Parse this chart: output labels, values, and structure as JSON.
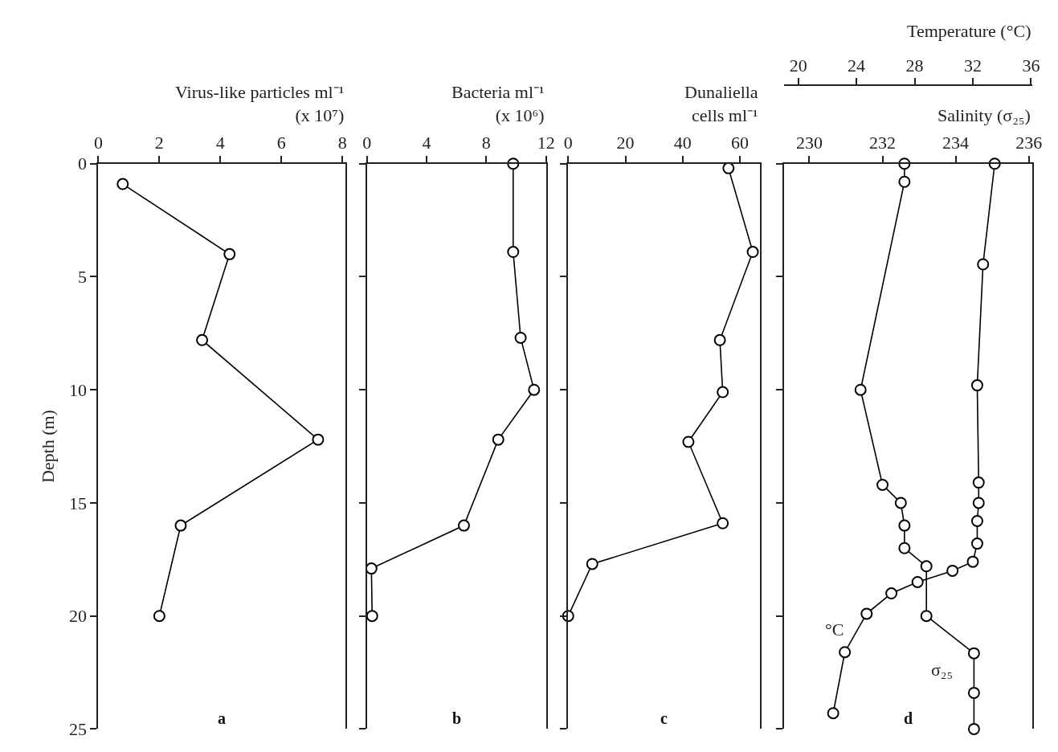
{
  "chart_data": [
    {
      "type": "line",
      "orientation": "horizontal",
      "title": "a",
      "xlabel": "Virus-like particles ml⁻¹\n(x 10⁷)",
      "ylabel": "Depth (m)",
      "xlim": [
        0,
        8.1
      ],
      "xticks": [
        0,
        2,
        4,
        6,
        8
      ],
      "ylim": [
        25,
        0
      ],
      "yticks": [
        0,
        5,
        10,
        15,
        20,
        25
      ],
      "marker": "circle",
      "series": [
        {
          "color": "#000000",
          "x": [
            0.9,
            4,
            7.8,
            12.2,
            16,
            20
          ],
          "values": [
            0.8,
            4.3,
            3.4,
            7.2,
            2.7,
            2.0
          ]
        }
      ]
    },
    {
      "type": "line",
      "orientation": "horizontal",
      "title": "b",
      "xlabel": "Bacteria ml⁻¹\n(x 10⁶)",
      "xlim": [
        0,
        12
      ],
      "xticks": [
        0,
        4,
        8,
        12
      ],
      "ylim": [
        25,
        0
      ],
      "yticks": [
        0,
        5,
        10,
        15,
        20,
        25
      ],
      "tick_labels": "x",
      "marker": "circle",
      "series": [
        {
          "color": "#000000",
          "x": [
            0,
            3.9,
            7.7,
            10,
            12.2,
            16,
            17.9,
            20
          ],
          "values": [
            9.8,
            9.8,
            10.3,
            11.2,
            8.8,
            6.5,
            0.3,
            0.35
          ]
        }
      ]
    },
    {
      "type": "line",
      "orientation": "horizontal",
      "title": "c",
      "xlabel": "Dunaliella\ncells ml⁻¹",
      "xlim": [
        0,
        67
      ],
      "xticks": [
        0,
        20,
        40,
        60
      ],
      "ylim": [
        25,
        0
      ],
      "yticks": [
        0,
        5,
        10,
        15,
        20,
        25
      ],
      "tick_labels": "x",
      "marker": "circle",
      "series": [
        {
          "color": "#000000",
          "x": [
            0.2,
            3.9,
            7.8,
            10.1,
            12.3,
            15.9,
            17.7,
            20
          ],
          "values": [
            56,
            64.5,
            53,
            54,
            42,
            54,
            8.4,
            0
          ]
        }
      ]
    },
    {
      "type": "line",
      "orientation": "horizontal",
      "title": "d",
      "xlabel": "Salinity (σ₂₅)",
      "x2label": "Temperature (°C)",
      "xlim": [
        229.3,
        236.1
      ],
      "xticks": [
        230,
        232,
        234,
        236
      ],
      "x2lim": [
        19.0,
        36.1
      ],
      "x2ticks": [
        20,
        24,
        28,
        32,
        36
      ],
      "ylim": [
        25,
        0
      ],
      "yticks": [
        0,
        5,
        10,
        15,
        20,
        25
      ],
      "tick_labels": "x",
      "marker": "circle",
      "series": [
        {
          "name": "°C",
          "color": "#000000",
          "axis": "x2",
          "x": [
            0,
            4.45,
            9.8,
            14.1,
            15,
            15.8,
            16.8,
            17.6,
            18.0,
            18.5,
            19.0,
            19.9,
            21.6,
            24.3
          ],
          "values": [
            33.5,
            32.7,
            32.3,
            32.4,
            32.4,
            32.3,
            32.3,
            32.0,
            30.6,
            28.2,
            26.4,
            24.7,
            23.2,
            22.4
          ]
        },
        {
          "name": "σ₂₅",
          "color": "#000000",
          "x": [
            0,
            0.8,
            10,
            14.2,
            15,
            16,
            17,
            17.8,
            20,
            21.65,
            23.4,
            25
          ],
          "values": [
            232.6,
            232.6,
            231.4,
            232.0,
            232.5,
            232.6,
            232.6,
            233.2,
            233.2,
            234.5,
            234.5,
            234.5
          ]
        }
      ]
    }
  ]
}
